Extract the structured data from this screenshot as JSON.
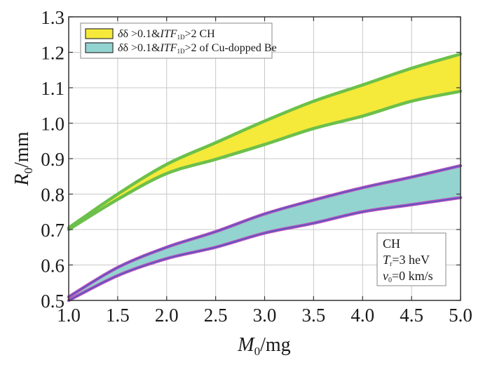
{
  "chart_data": {
    "type": "area",
    "title": "",
    "xlabel": {
      "main": "M",
      "sub": "0",
      "unit": "/mg"
    },
    "ylabel": {
      "main": "R",
      "sub": "0",
      "unit": "/mm"
    },
    "xlim": [
      1.0,
      5.0
    ],
    "ylim": [
      0.5,
      1.3
    ],
    "xticks": [
      1.0,
      1.5,
      2.0,
      2.5,
      3.0,
      3.5,
      4.0,
      4.5,
      5.0
    ],
    "xtick_labels": [
      "1.0",
      "1.5",
      "2.0",
      "2.5",
      "3.0",
      "3.5",
      "4.0",
      "4.5",
      "5.0"
    ],
    "yticks": [
      0.5,
      0.6,
      0.7,
      0.8,
      0.9,
      1.0,
      1.1,
      1.2,
      1.3
    ],
    "ytick_labels": [
      "0.5",
      "0.6",
      "0.7",
      "0.8",
      "0.9",
      "1.0",
      "1.1",
      "1.2",
      "1.3"
    ],
    "grid": true,
    "legend_position": "top-left",
    "x": [
      1.0,
      1.5,
      2.0,
      2.5,
      3.0,
      3.5,
      4.0,
      4.5,
      5.0
    ],
    "series": [
      {
        "name": "δ >0.1&ITF1D>2 CH",
        "legend": {
          "pre": "δ >0.1&",
          "italic": "ITF",
          "sub": "1D",
          "post": ">2 CH"
        },
        "fill_color": "#f5e93a",
        "edge_color": "#6cc04a",
        "upper": [
          0.705,
          0.8,
          0.884,
          0.945,
          1.006,
          1.062,
          1.108,
          1.155,
          1.195
        ],
        "lower": [
          0.7,
          0.785,
          0.858,
          0.898,
          0.94,
          0.985,
          1.02,
          1.062,
          1.09
        ]
      },
      {
        "name": "δ >0.1&ITF1D>2 of Cu-dopped Be",
        "legend": {
          "pre": "δ >0.1&",
          "italic": "ITF",
          "sub": "1D",
          "post": ">2 of Cu-dopped Be"
        },
        "fill_color": "#93d3d0",
        "edge_color": "#b452b8",
        "inner_edge_color": "#3a55c8",
        "upper": [
          0.51,
          0.593,
          0.65,
          0.694,
          0.744,
          0.783,
          0.818,
          0.848,
          0.88
        ],
        "lower": [
          0.5,
          0.57,
          0.618,
          0.65,
          0.69,
          0.718,
          0.75,
          0.77,
          0.79
        ]
      }
    ],
    "annotation": {
      "line1": "CH",
      "line2": {
        "main": "T",
        "sub": "r",
        "rest": "=3 heV"
      },
      "line3": {
        "main": "v",
        "sub": "0",
        "rest": "=0 km/s"
      }
    }
  }
}
